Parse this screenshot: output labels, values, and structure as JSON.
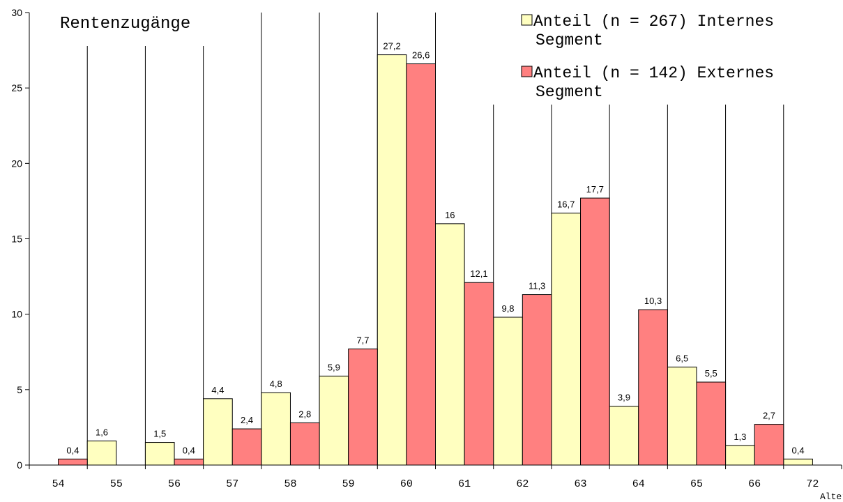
{
  "chart_data": {
    "type": "bar",
    "title": "Rentenzugänge",
    "xlabel": "Alter",
    "ylabel": "",
    "ylim": [
      0,
      30
    ],
    "yticks": [
      0,
      5,
      10,
      15,
      20,
      25,
      30
    ],
    "categories": [
      "54",
      "55",
      "56",
      "57",
      "58",
      "59",
      "60",
      "61",
      "62",
      "63",
      "64",
      "65",
      "66",
      "72"
    ],
    "legend_position": "top-right",
    "series": [
      {
        "name": "Anteil (n = 267) Internes Segment",
        "color": "#ffffc0",
        "values": [
          null,
          1.6,
          1.5,
          4.4,
          4.8,
          5.9,
          27.2,
          16,
          9.8,
          16.7,
          3.9,
          6.5,
          1.3,
          0.4
        ],
        "labels": [
          "",
          "1,6",
          "1,5",
          "4,4",
          "4,8",
          "5,9",
          "27,2",
          "16",
          "9,8",
          "16,7",
          "3,9",
          "6,5",
          "1,3",
          "0,4"
        ]
      },
      {
        "name": "Anteil (n = 142) Externes Segment",
        "color": "#ff8080",
        "values": [
          0.4,
          null,
          0.4,
          2.4,
          2.8,
          7.7,
          26.6,
          12.1,
          11.3,
          17.7,
          10.3,
          5.5,
          2.7,
          null
        ],
        "labels": [
          "0,4",
          "",
          "0,4",
          "2,4",
          "2,8",
          "7,7",
          "26,6",
          "12,1",
          "11,3",
          "17,7",
          "10,3",
          "5,5",
          "2,7",
          ""
        ]
      }
    ],
    "legend": {
      "entry1_line1": "Anteil (n = 267) Internes",
      "entry1_line2": "Segment",
      "entry2_line1": "Anteil (n = 142) Externes",
      "entry2_line2": "Segment"
    }
  }
}
